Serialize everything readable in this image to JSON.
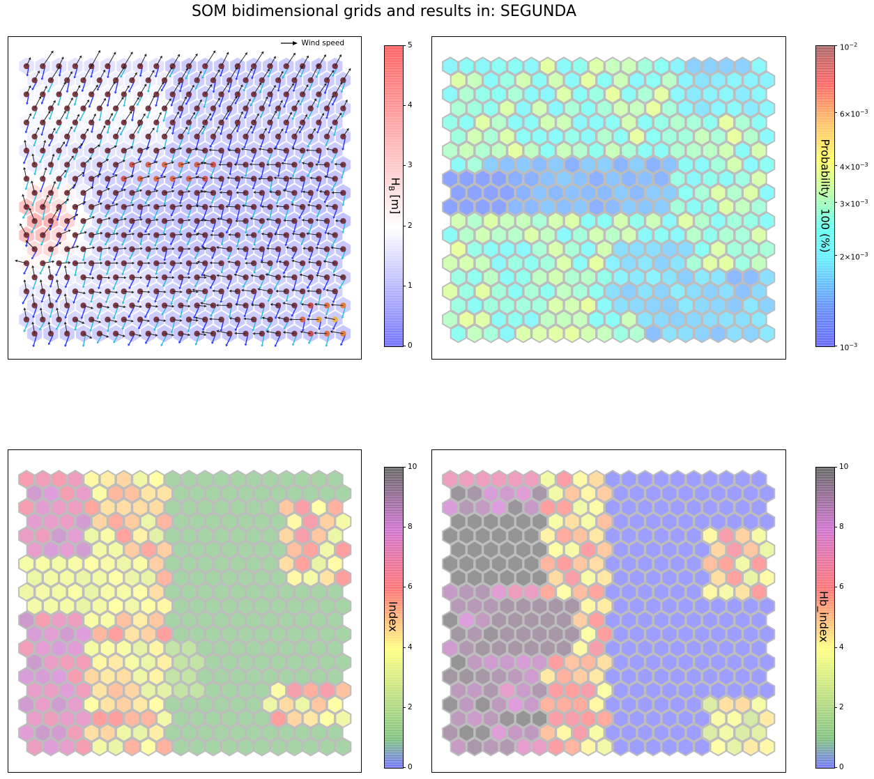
{
  "figure_title": "SOM bidimensional grids and results in: SEGUNDA",
  "colors": {
    "panel_border": "#000000",
    "hex_edge": "#bdbdbd",
    "arrow_blue": "#2233ff",
    "arrow_cyan": "#22bbdd",
    "arrow_black": "#222222"
  },
  "chart_data": [
    {
      "type": "heatmap",
      "grid": {
        "cols": 20,
        "rows": 20,
        "shape": "hexagon"
      },
      "title": "",
      "colorbar": {
        "label": "H_B [m]",
        "label_main": "H",
        "label_sub": "B",
        "label_tail": " [m]",
        "colormap": "bwr",
        "range": [
          0,
          5
        ],
        "ticks": [
          "0",
          "1",
          "2",
          "3",
          "4",
          "5"
        ]
      },
      "legend": {
        "entries": [
          "Wind speed"
        ],
        "placement": "top-right"
      },
      "background_hotspot": {
        "row": 11,
        "col": 0.5,
        "value": 3.8
      },
      "point_hotspot_mid": {
        "row": 7.5,
        "col": 8.5,
        "value": 3.3
      },
      "point_hotspot_corner": {
        "row": 18,
        "col": 19,
        "value": 4.0
      }
    },
    {
      "type": "heatmap",
      "grid": {
        "cols": 20,
        "rows": 20,
        "shape": "hexagon"
      },
      "title": "",
      "colorbar": {
        "label": "Probability · 100 (%)",
        "colormap": "jet",
        "scale": "log",
        "range": [
          0.001,
          0.01
        ],
        "ticks": [
          {
            "base": "10",
            "exp": "−2",
            "value": 0.01
          },
          {
            "base": "6×10",
            "exp": "−3",
            "value": 0.006
          },
          {
            "base": "4×10",
            "exp": "−3",
            "value": 0.004
          },
          {
            "base": "3×10",
            "exp": "−3",
            "value": 0.003
          },
          {
            "base": "2×10",
            "exp": "−3",
            "value": 0.002
          },
          {
            "base": "10",
            "exp": "−3",
            "value": 0.001
          }
        ]
      },
      "low_probability_regions": [
        "rows 7-10 middle band",
        "bottom-right corner"
      ]
    },
    {
      "type": "heatmap",
      "grid": {
        "cols": 20,
        "rows": 20,
        "shape": "hexagon"
      },
      "title": "",
      "colorbar": {
        "label": "Index",
        "colormap": "jet",
        "range": [
          0,
          10
        ],
        "ticks": [
          "0",
          "2",
          "4",
          "6",
          "8",
          "10"
        ]
      },
      "regions": [
        "left: high index (6-9)",
        "right: low index (~1)",
        "right edge band: mixed 3-7"
      ]
    },
    {
      "type": "heatmap",
      "grid": {
        "cols": 20,
        "rows": 20,
        "shape": "hexagon"
      },
      "title": "",
      "colorbar": {
        "label": "Hb_index",
        "colormap": "jet",
        "range": [
          0,
          10
        ],
        "ticks": [
          "0",
          "2",
          "4",
          "6",
          "8",
          "10"
        ]
      },
      "regions": [
        "left: very high (10)",
        "center-left: high/medium",
        "right: low (0)"
      ]
    }
  ]
}
